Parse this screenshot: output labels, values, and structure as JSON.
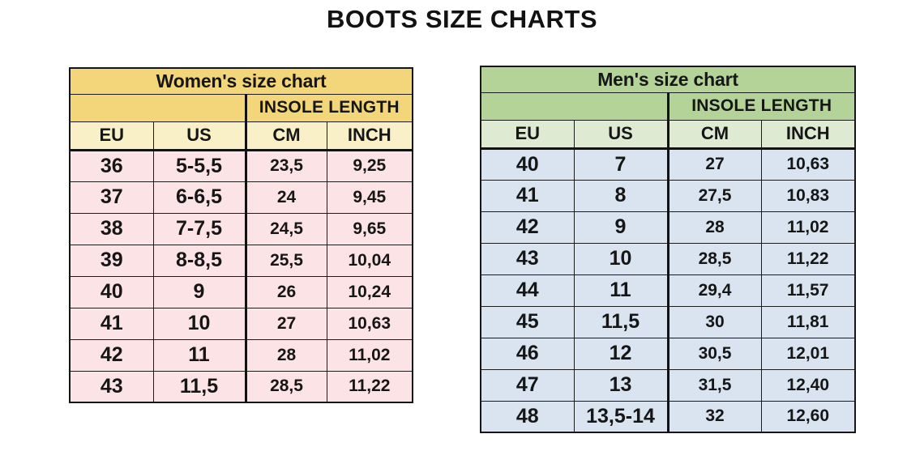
{
  "page": {
    "title": "BOOTS SIZE CHARTS",
    "background_color": "#ffffff",
    "text_color": "#161616"
  },
  "chart_data": [
    {
      "type": "table",
      "id": "womens",
      "title": "Women's size chart",
      "insole_header": "INSOLE LENGTH",
      "columns": [
        "EU",
        "US",
        "CM",
        "INCH"
      ],
      "rows": [
        [
          "36",
          "5-5,5",
          "23,5",
          "9,25"
        ],
        [
          "37",
          "6-6,5",
          "24",
          "9,45"
        ],
        [
          "38",
          "7-7,5",
          "24,5",
          "9,65"
        ],
        [
          "39",
          "8-8,5",
          "25,5",
          "10,04"
        ],
        [
          "40",
          "9",
          "26",
          "10,24"
        ],
        [
          "41",
          "10",
          "27",
          "10,63"
        ],
        [
          "42",
          "11",
          "28",
          "11,02"
        ],
        [
          "43",
          "11,5",
          "28,5",
          "11,22"
        ]
      ],
      "colors": {
        "header_bg": "#f3d67a",
        "column_header_bg": "#faf0c8",
        "body_bg": "#fce4e6",
        "border": "#1c1c1c"
      }
    },
    {
      "type": "table",
      "id": "mens",
      "title": "Men's size chart",
      "insole_header": "INSOLE LENGTH",
      "columns": [
        "EU",
        "US",
        "CM",
        "INCH"
      ],
      "rows": [
        [
          "40",
          "7",
          "27",
          "10,63"
        ],
        [
          "41",
          "8",
          "27,5",
          "10,83"
        ],
        [
          "42",
          "9",
          "28",
          "11,02"
        ],
        [
          "43",
          "10",
          "28,5",
          "11,22"
        ],
        [
          "44",
          "11",
          "29,4",
          "11,57"
        ],
        [
          "45",
          "11,5",
          "30",
          "11,81"
        ],
        [
          "46",
          "12",
          "30,5",
          "12,01"
        ],
        [
          "47",
          "13",
          "31,5",
          "12,40"
        ],
        [
          "48",
          "13,5-14",
          "32",
          "12,60"
        ]
      ],
      "colors": {
        "header_bg": "#b4d399",
        "column_header_bg": "#deebd2",
        "body_bg": "#d9e4f0",
        "border": "#1c1c1c"
      }
    }
  ]
}
